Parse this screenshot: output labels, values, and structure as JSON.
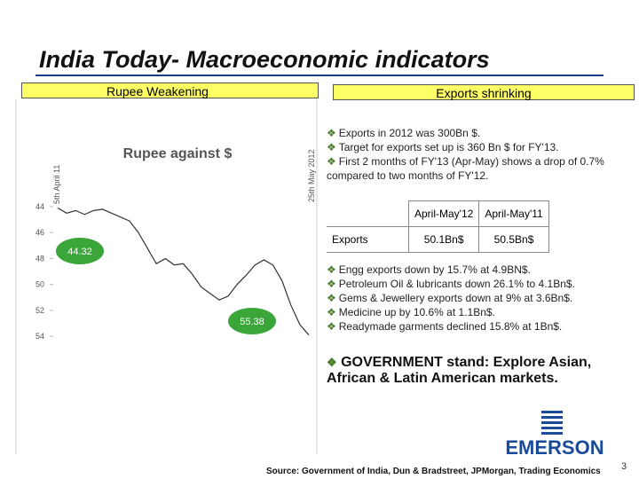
{
  "title": "India Today- Macroeconomic indicators",
  "left_header": "Rupee Weakening",
  "right_header": "Exports shrinking",
  "chart_data": {
    "type": "line",
    "title": "Rupee against $",
    "x_start_label": "5th April 11",
    "x_end_label": "25th May 2012",
    "values": [
      44.1,
      44.5,
      44.3,
      44.6,
      44.3,
      44.2,
      44.5,
      44.8,
      45.1,
      46.0,
      47.2,
      48.4,
      48.0,
      48.5,
      48.4,
      49.2,
      50.2,
      50.7,
      51.2,
      50.9,
      50.0,
      49.3,
      48.5,
      48.1,
      48.5,
      49.7,
      51.6,
      53.1,
      53.9
    ],
    "color": "#333333",
    "ylim": [
      41.4,
      54.4
    ],
    "inverted": true,
    "yticks": [
      44,
      46,
      48,
      50,
      52,
      54
    ],
    "annotations": [
      44.32,
      55.38
    ]
  },
  "bullets_top": [
    "Exports in 2012 was 300Bn $.",
    "Target for exports set up is 360 Bn $ for FY'13.",
    "First 2 months of FY'13 (Apr-May) shows a drop of 0.7% compared to two months of FY'12."
  ],
  "table": {
    "header": [
      "April-May'12",
      "April-May'11"
    ],
    "rows": [
      [
        "Exports",
        "50.1Bn$",
        "50.5Bn$"
      ]
    ]
  },
  "bullets_mid": [
    "Engg exports down by 15.7% at 4.9BN$.",
    "Petroleum Oil & lubricants down 26.1% to 4.1Bn$.",
    "Gems & Jewellery exports down at 9% at 3.6Bn$.",
    "Medicine up by 10.6% at 1.1Bn$.",
    "Readymade garments declined 15.8% at 1Bn$."
  ],
  "government": "GOVERNMENT stand: Explore Asian, African & Latin American markets.",
  "logo": "EMERSON",
  "source": "Source: Government of India, Dun & Bradstreet, JPMorgan, Trading Economics",
  "page_number": "3"
}
